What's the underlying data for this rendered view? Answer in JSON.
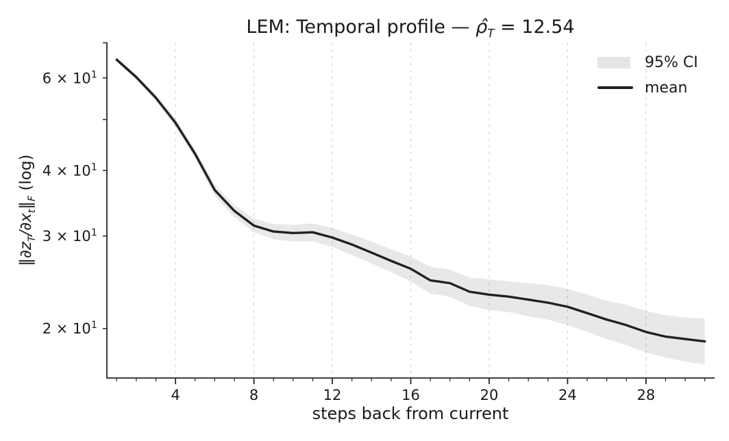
{
  "title": {
    "prefix": "LEM: Temporal profile — ",
    "symbol": "ρ̂",
    "symbol_sub": "T",
    "suffix": " = 12.54"
  },
  "axes": {
    "ylabel": {
      "bar1": "‖",
      "dz": "∂z",
      "subT": "T",
      "dx": "/∂x",
      "subt": "t",
      "bar2": "‖",
      "subF": "F",
      "log": " (log)"
    },
    "xlabel": "steps back from current"
  },
  "legend": {
    "ci_label": "95% CI",
    "mean_label": "mean"
  },
  "colors": {
    "mean_line": "#212121",
    "ci_band": "rgba(0,0,0,0.09)",
    "legend_patch": "#e5e5e5",
    "grid": "#d6d6d6",
    "spine": "#262626",
    "text": "#1a1a1a",
    "background": "#ffffff"
  },
  "chart_data": {
    "type": "line",
    "title": "LEM: Temporal profile — ρ̂_T = 12.54",
    "xlabel": "steps back from current",
    "ylabel": "‖∂z_T/∂x_t‖_F (log)",
    "yscale": "log",
    "xlim": [
      0.5,
      31.5
    ],
    "ylim": [
      16.1,
      70.1
    ],
    "grid": "vertical-dashed-only",
    "legend_position": "upper right",
    "x": [
      1,
      2,
      3,
      4,
      5,
      6,
      7,
      8,
      9,
      10,
      11,
      12,
      13,
      14,
      15,
      16,
      17,
      18,
      19,
      20,
      21,
      22,
      23,
      24,
      25,
      26,
      27,
      28,
      29,
      30,
      31
    ],
    "series": [
      {
        "name": "mean",
        "values": [
          65.0,
          60.2,
          55.0,
          49.3,
          43.0,
          36.7,
          33.5,
          31.4,
          30.6,
          30.4,
          30.5,
          29.8,
          28.9,
          27.9,
          26.9,
          26.0,
          24.7,
          24.4,
          23.5,
          23.2,
          23.0,
          22.7,
          22.4,
          22.0,
          21.4,
          20.8,
          20.3,
          19.7,
          19.3,
          19.1,
          18.9
        ]
      },
      {
        "name": "ci_lower",
        "values": [
          64.4,
          59.5,
          54.2,
          48.4,
          42.1,
          35.8,
          32.6,
          30.5,
          29.6,
          29.3,
          29.3,
          28.6,
          27.6,
          26.6,
          25.6,
          24.6,
          23.3,
          23.0,
          22.1,
          21.7,
          21.5,
          21.1,
          20.8,
          20.3,
          19.7,
          19.1,
          18.6,
          18.0,
          17.6,
          17.3,
          17.1
        ]
      },
      {
        "name": "ci_upper",
        "values": [
          65.6,
          60.9,
          55.8,
          50.2,
          43.9,
          37.6,
          34.4,
          32.4,
          31.6,
          31.5,
          31.7,
          31.1,
          30.2,
          29.3,
          28.3,
          27.4,
          26.2,
          25.9,
          25.0,
          24.8,
          24.6,
          24.4,
          24.2,
          23.8,
          23.2,
          22.6,
          22.2,
          21.6,
          21.2,
          21.0,
          20.9
        ]
      }
    ],
    "x_ticks_major": [
      4,
      8,
      12,
      16,
      20,
      24,
      28
    ],
    "x_tick_labels": [
      "4",
      "8",
      "12",
      "16",
      "20",
      "24",
      "28"
    ],
    "x_ticks_minor": [
      1,
      2,
      3,
      5,
      6,
      7,
      9,
      10,
      11,
      13,
      14,
      15,
      17,
      18,
      19,
      21,
      22,
      23,
      25,
      26,
      27,
      29,
      30,
      31
    ],
    "y_ticks": [
      {
        "value": 60,
        "mantissa": "6 × 10",
        "exp": "1"
      },
      {
        "value": 50,
        "mantissa": "",
        "exp": ""
      },
      {
        "value": 40,
        "mantissa": "4 × 10",
        "exp": "1"
      },
      {
        "value": 30,
        "mantissa": "3 × 10",
        "exp": "1"
      },
      {
        "value": 20,
        "mantissa": "2 × 10",
        "exp": "1"
      },
      {
        "value": 70,
        "mantissa": "",
        "exp": ""
      }
    ]
  }
}
